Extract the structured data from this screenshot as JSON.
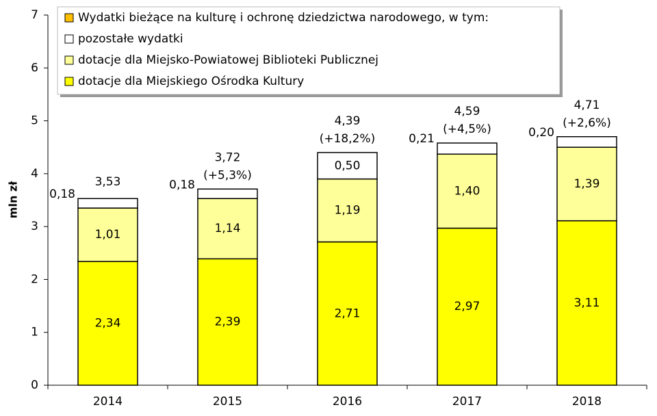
{
  "chart_data": {
    "type": "stacked_bar",
    "y_label": "mln zł",
    "legend_title": {
      "text": "Wydatki bieżące na kulturę i ochronę dziedzictwa narodowego, w tym:",
      "color": "#ffc000"
    },
    "categories": [
      "2014",
      "2015",
      "2016",
      "2017",
      "2018"
    ],
    "series": [
      {
        "name": "dotacje dla Miejskiego Ośrodka Kultury",
        "color": "#ffff00",
        "values": [
          2.34,
          2.39,
          2.71,
          2.97,
          3.11
        ],
        "value_labels": [
          "2,34",
          "2,39",
          "2,71",
          "2,97",
          "3,11"
        ]
      },
      {
        "name": "dotacje dla Miejsko-Powiatowej Biblioteki Publicznej",
        "color": "#ffff99",
        "values": [
          1.01,
          1.14,
          1.19,
          1.4,
          1.39
        ],
        "value_labels": [
          "1,01",
          "1,14",
          "1,19",
          "1,40",
          "1,39"
        ]
      },
      {
        "name": "pozostałe wydatki",
        "color": "#ffffff",
        "values": [
          0.18,
          0.18,
          0.5,
          0.21,
          0.2
        ],
        "value_labels": [
          "0,18",
          "0,18",
          "0,50",
          "0,21",
          "0,20"
        ]
      }
    ],
    "totals": [
      3.53,
      3.72,
      4.39,
      4.59,
      4.71
    ],
    "totals_labels": [
      "3,53",
      "3,72",
      "4,39",
      "4,59",
      "4,71"
    ],
    "changes": [
      null,
      5.3,
      18.2,
      4.5,
      2.6
    ],
    "changes_labels": [
      null,
      "(+5,3%)",
      "(+18,2%)",
      "(+4,5%)",
      "(+2,6%)"
    ],
    "ylim": [
      0,
      7
    ],
    "yticks": [
      0,
      1,
      2,
      3,
      4,
      5,
      6,
      7
    ]
  }
}
